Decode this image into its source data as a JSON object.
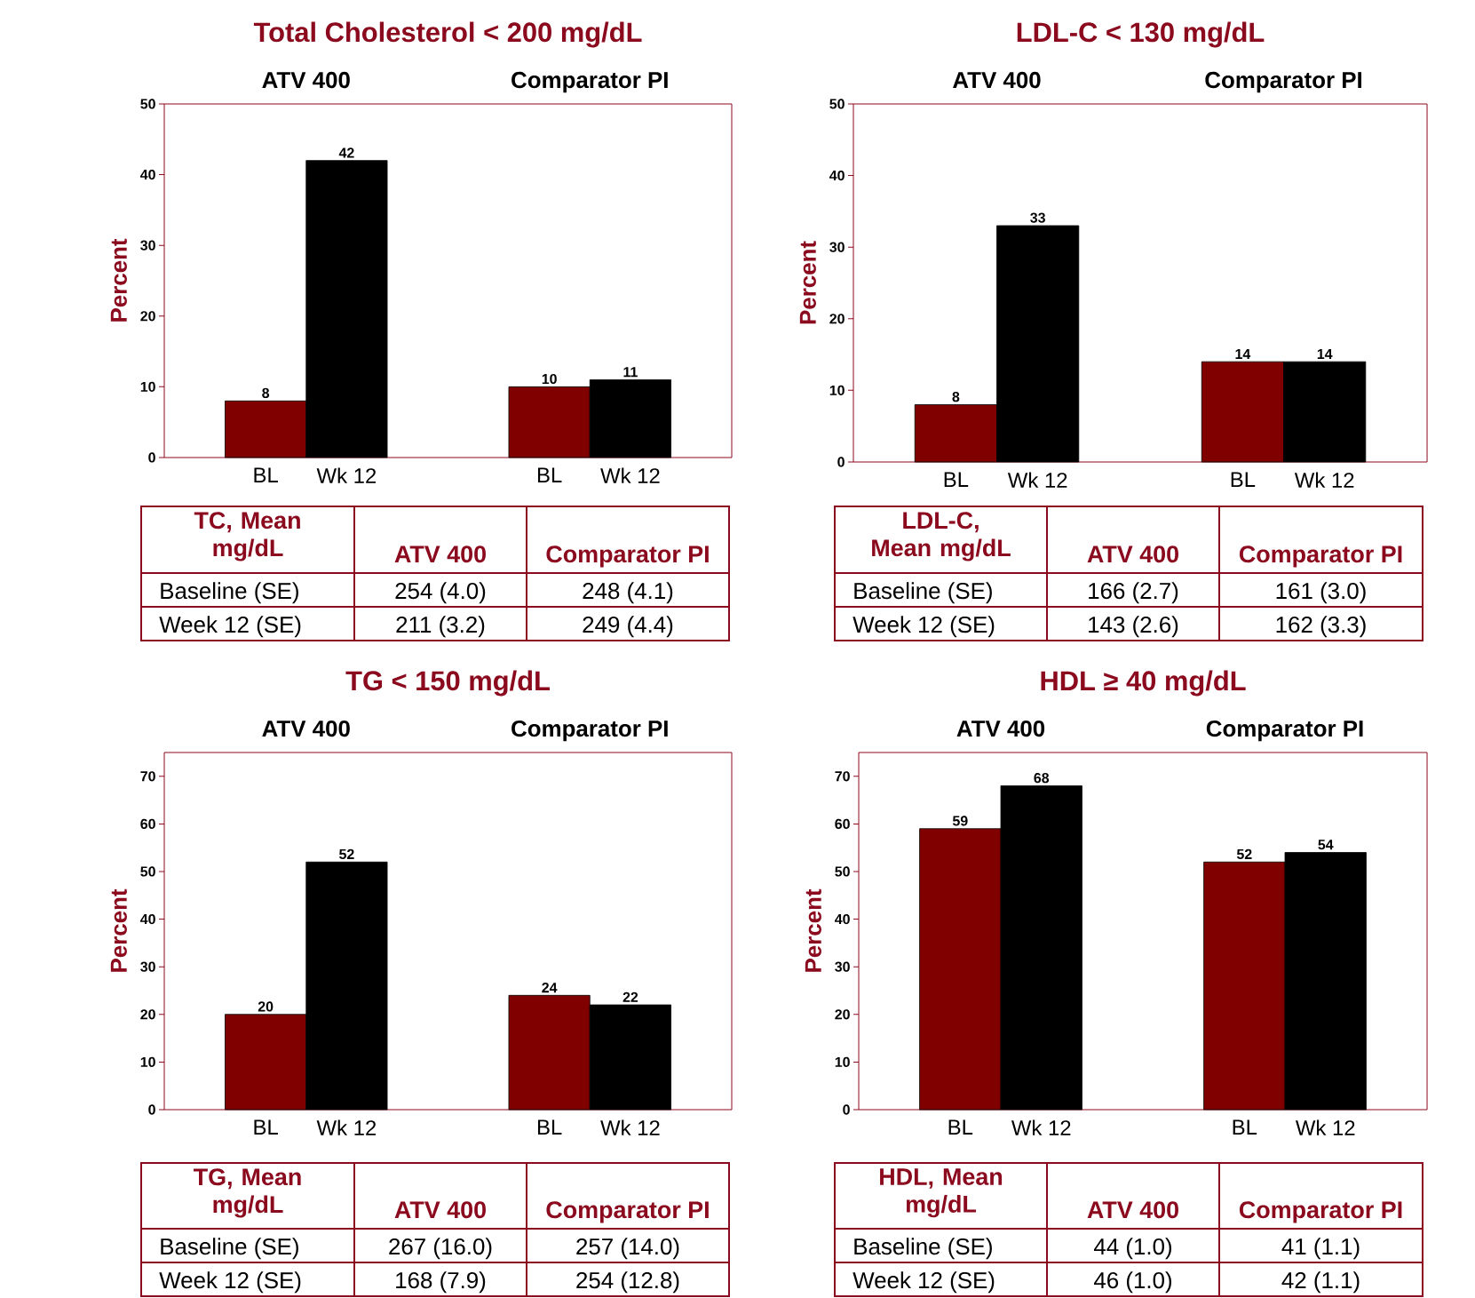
{
  "chart_data": [
    {
      "type": "bar",
      "title": "Total Cholesterol < 200 mg/dL",
      "ylabel": "Percent",
      "categories": [
        "BL",
        "Wk 12",
        "BL",
        "Wk 12"
      ],
      "values": [
        8,
        42,
        10,
        11
      ],
      "colors": [
        "#800000",
        "#000000",
        "#800000",
        "#000000"
      ],
      "ylim": [
        0,
        50
      ],
      "yticks": [
        0,
        10,
        20,
        30,
        40,
        50
      ],
      "data_labels": true,
      "annotations": [
        "ATV 400",
        "Comparator PI",
        "TC, Mean mg/dL",
        "ATV 400",
        "Comparator PI",
        "Baseline (SE)",
        "254 (4.0)",
        "248 (4.1)",
        "Week 12 (SE)",
        "211 (3.2)",
        "249 (4.4)"
      ]
    },
    {
      "type": "bar",
      "title": "LDL-C < 130 mg/dL",
      "ylabel": "Percent",
      "categories": [
        "BL",
        "Wk 12",
        "BL",
        "Wk 12"
      ],
      "values": [
        8,
        33,
        14,
        14
      ],
      "colors": [
        "#800000",
        "#000000",
        "#800000",
        "#000000"
      ],
      "ylim": [
        0,
        50
      ],
      "yticks": [
        0,
        10,
        20,
        30,
        40,
        50
      ],
      "data_labels": true,
      "annotations": [
        "ATV 400",
        "Comparator PI",
        "LDL-C, Mean mg/dL",
        "ATV 400",
        "Comparator PI",
        "Baseline (SE)",
        "166 (2.7)",
        "161 (3.0)",
        "Week 12 (SE)",
        "143 (2.6)",
        "162 (3.3)"
      ]
    },
    {
      "type": "bar",
      "title": "TG < 150 mg/dL",
      "ylabel": "Percent",
      "categories": [
        "BL",
        "Wk 12",
        "BL",
        "Wk 12"
      ],
      "values": [
        20,
        52,
        24,
        22
      ],
      "colors": [
        "#800000",
        "#000000",
        "#800000",
        "#000000"
      ],
      "ylim": [
        0,
        75
      ],
      "yticks": [
        0,
        10,
        20,
        30,
        40,
        50,
        60,
        70
      ],
      "data_labels": true,
      "annotations": [
        "ATV 400",
        "Comparator PI",
        "TG, Mean mg/dL",
        "ATV 400",
        "Comparator PI",
        "Baseline (SE)",
        "267 (16.0)",
        "257 (14.0)",
        "Week 12 (SE)",
        "168 (7.9)",
        "254 (12.8)"
      ]
    },
    {
      "type": "bar",
      "title": "HDL ≥ 40 mg/dL",
      "ylabel": "Percent",
      "categories": [
        "BL",
        "Wk 12",
        "BL",
        "Wk 12"
      ],
      "values": [
        59,
        68,
        52,
        54
      ],
      "colors": [
        "#800000",
        "#000000",
        "#800000",
        "#000000"
      ],
      "ylim": [
        0,
        75
      ],
      "yticks": [
        0,
        10,
        20,
        30,
        40,
        50,
        60,
        70
      ],
      "data_labels": true,
      "annotations": [
        "ATV 400",
        "Comparator PI",
        "HDL, Mean mg/dL",
        "ATV 400",
        "Comparator PI",
        "Baseline (SE)",
        "44 (1.0)",
        "41 (1.1)",
        "Week 12 (SE)",
        "46 (1.0)",
        "42 (1.1)"
      ]
    }
  ]
}
